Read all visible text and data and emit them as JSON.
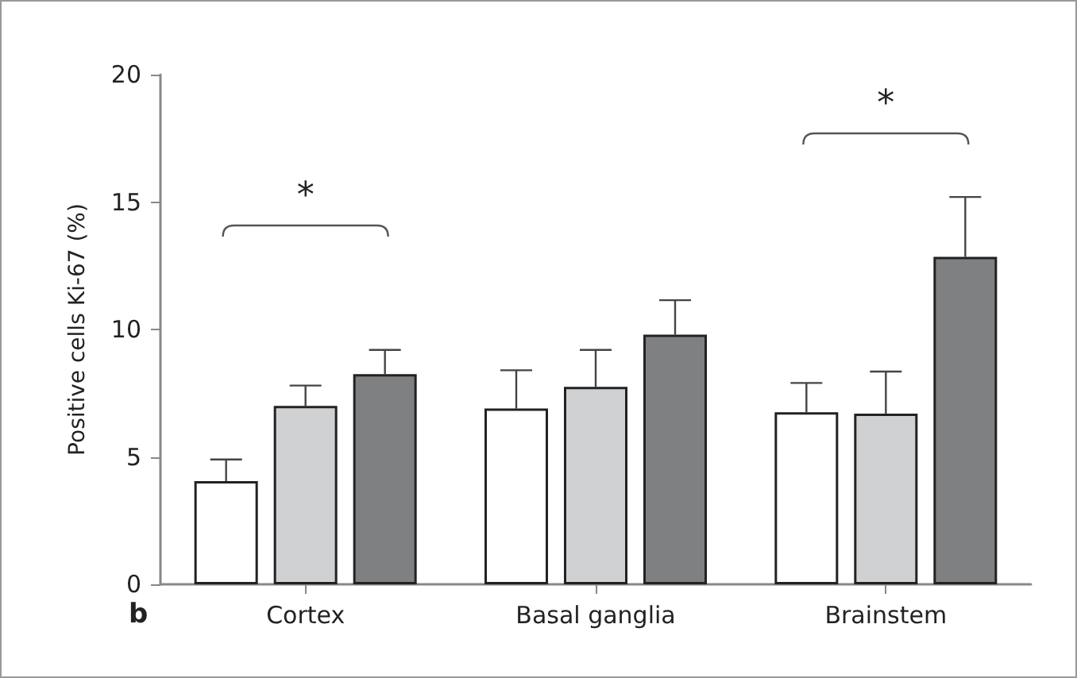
{
  "chart_data": {
    "type": "bar",
    "ylabel": "Positive cells Ki-67 (%)",
    "categories": [
      "Cortex",
      "Basal ganglia",
      "Brainstem"
    ],
    "series": [
      {
        "color": "#ffffff",
        "values": [
          4.05,
          6.9,
          6.75
        ],
        "errors": [
          [
            4.05,
            4.9
          ],
          [
            6.9,
            8.4
          ],
          [
            6.75,
            7.9
          ]
        ]
      },
      {
        "color": "#d0d1d3",
        "values": [
          7.0,
          7.75,
          6.7
        ],
        "errors": [
          [
            7.0,
            7.8
          ],
          [
            7.75,
            9.2
          ],
          [
            6.7,
            8.35
          ]
        ]
      },
      {
        "color": "#7f8082",
        "values": [
          8.25,
          9.8,
          12.85
        ],
        "errors": [
          [
            8.25,
            9.2
          ],
          [
            9.8,
            11.15
          ],
          [
            12.85,
            15.2
          ]
        ]
      }
    ],
    "ylim": [
      0,
      20
    ],
    "yticks": [
      0,
      5,
      10,
      15,
      20
    ],
    "grid": false,
    "annotations": [
      "*",
      "*",
      "b"
    ]
  }
}
